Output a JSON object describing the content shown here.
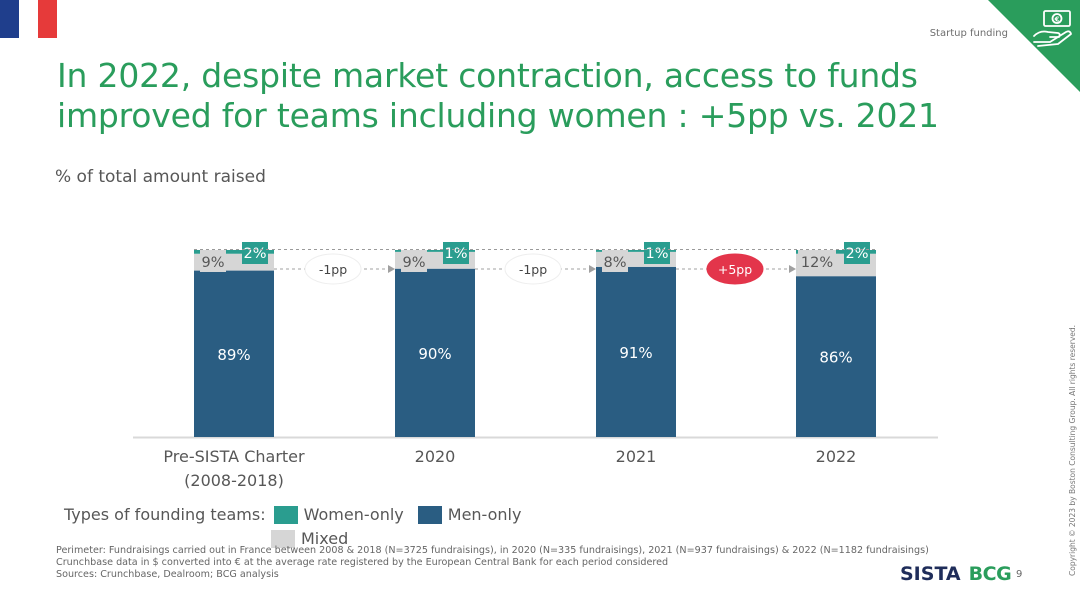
{
  "header": {
    "topic": "Startup funding",
    "title_line1": "In 2022, despite market contraction, access to funds",
    "title_line2": "improved for teams including women : +5pp vs. 2021",
    "subtitle": "% of total amount raised"
  },
  "colors": {
    "title": "#2a9d5c",
    "women_only": "#2a9d8f",
    "men_only": "#2a5d82",
    "mixed": "#d6d6d6",
    "flag_blue": "#1f3e8c",
    "flag_red": "#e63a3a",
    "corner": "#2a9d5c",
    "bubble_highlight": "#e3354b"
  },
  "icons": {
    "corner": "money-hand-icon"
  },
  "chart_data": {
    "type": "bar",
    "stacked": true,
    "categories": [
      "Pre-SISTA Charter (2008-2018)",
      "2020",
      "2021",
      "2022"
    ],
    "category_labels": [
      [
        "Pre-SISTA Charter",
        "(2008-2018)"
      ],
      [
        "2020"
      ],
      [
        "2021"
      ],
      [
        "2022"
      ]
    ],
    "series": [
      {
        "name": "Men-only",
        "values": [
          89,
          90,
          91,
          86
        ],
        "labels": [
          "89%",
          "90%",
          "91%",
          "86%"
        ]
      },
      {
        "name": "Mixed",
        "values": [
          9,
          9,
          8,
          12
        ],
        "labels": [
          "9%",
          "9%",
          "8%",
          "12%"
        ]
      },
      {
        "name": "Women-only",
        "values": [
          2,
          1,
          1,
          2
        ],
        "labels": [
          "2%",
          "1%",
          "1%",
          "2%"
        ]
      }
    ],
    "ylim": [
      0,
      100
    ],
    "grid": false,
    "annotations": [
      {
        "between": [
          0,
          1
        ],
        "label": "-1pp",
        "highlight": false
      },
      {
        "between": [
          1,
          2
        ],
        "label": "-1pp",
        "highlight": false
      },
      {
        "between": [
          2,
          3
        ],
        "label": "+5pp",
        "highlight": true
      }
    ],
    "legend": {
      "title": "Types of founding teams:",
      "items": [
        "Women-only",
        "Men-only",
        "Mixed"
      ],
      "placement": "bottom-left"
    }
  },
  "footnote": {
    "line1": "Perimeter: Fundraisings carried out in France between 2008 & 2018 (N=3725 fundraisings), in 2020 (N=335 fundraisings), 2021 (N=937 fundraisings) & 2022 (N=1182 fundraisings)",
    "line2": "Crunchbase data in $ converted into € at the average rate registered by the European Central Bank for each period considered",
    "line3": "Sources: Crunchbase, Dealroom; BCG analysis"
  },
  "footer": {
    "logo_sista": "SISTA",
    "logo_bcg": "BCG",
    "page_number": "9",
    "copyright": "Copyright © 2023 by Boston Consulting Group. All rights reserved."
  }
}
